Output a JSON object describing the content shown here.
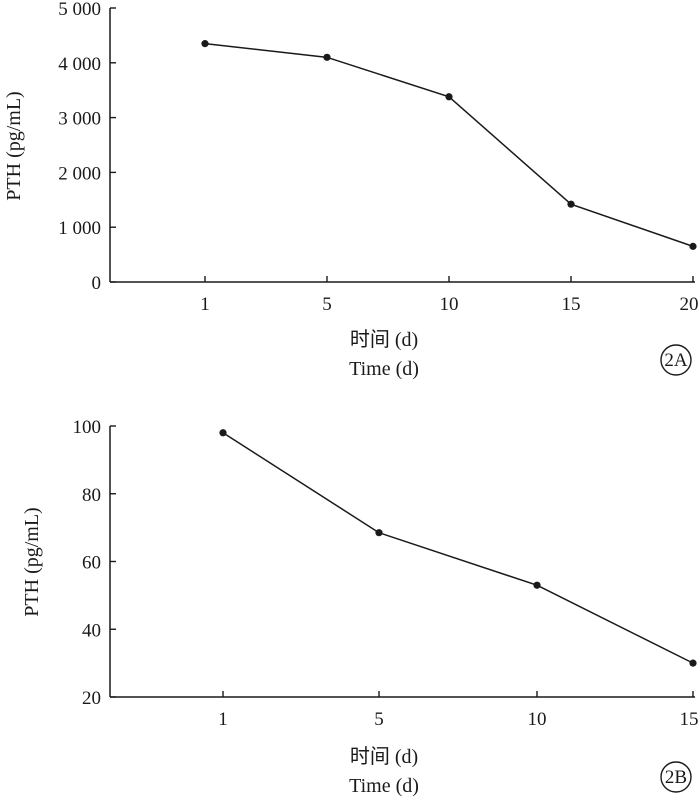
{
  "chart_data": [
    {
      "type": "line",
      "panel_label": "2A",
      "xlabel_cn": "时间 (d)",
      "xlabel": "Time (d)",
      "ylabel": "PTH (pg/mL)",
      "categories": [
        "1",
        "5",
        "10",
        "15",
        "20"
      ],
      "values": [
        4350,
        4100,
        3380,
        1420,
        650
      ],
      "yticks": [
        0,
        1000,
        2000,
        3000,
        4000,
        5000
      ],
      "ytick_labels": [
        "0",
        "1 000",
        "2 000",
        "3 000",
        "4 000",
        "5 000"
      ],
      "ylim": [
        0,
        5000
      ],
      "color": "#1a1a1a"
    },
    {
      "type": "line",
      "panel_label": "2B",
      "xlabel_cn": "时间 (d)",
      "xlabel": "Time (d)",
      "ylabel": "PTH (pg/mL)",
      "categories": [
        "1",
        "5",
        "10",
        "15"
      ],
      "values": [
        98,
        68.5,
        53,
        30
      ],
      "yticks": [
        20,
        40,
        60,
        80,
        100
      ],
      "ytick_labels": [
        "20",
        "40",
        "60",
        "80",
        "100"
      ],
      "ylim": [
        20,
        100
      ],
      "color": "#1a1a1a"
    }
  ]
}
